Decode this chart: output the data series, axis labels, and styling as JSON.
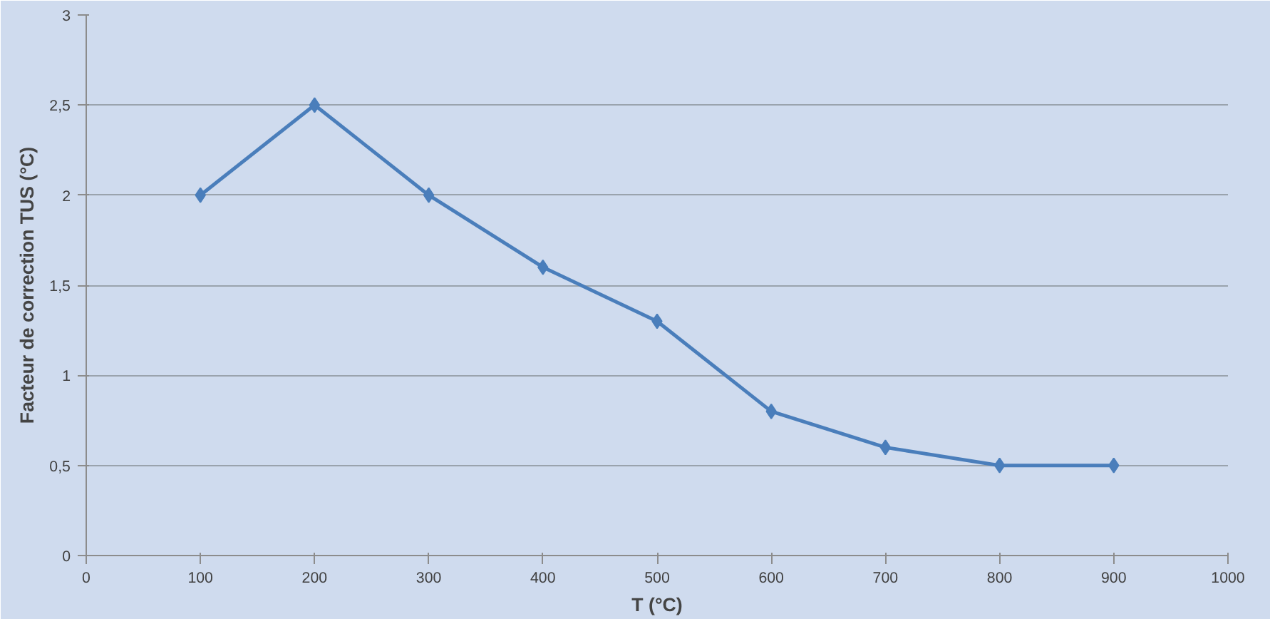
{
  "chart_data": {
    "type": "line",
    "xlabel": "T (°C)",
    "ylabel": "Facteur de correction TUS (°C)",
    "x": [
      100,
      200,
      300,
      400,
      500,
      600,
      700,
      800,
      900
    ],
    "series": [
      {
        "color": "#4a7ebb",
        "values": [
          2,
          2.5,
          2,
          1.6,
          1.3,
          0.8,
          0.6,
          0.5,
          0.5
        ]
      }
    ],
    "xlim": [
      0,
      1000
    ],
    "xticks": [
      0,
      100,
      200,
      300,
      400,
      500,
      600,
      700,
      800,
      900,
      1000
    ],
    "ylim": [
      0,
      3
    ],
    "yticks": [
      0,
      {
        "value": 0.5,
        "label": "0,5"
      },
      1,
      {
        "value": 1.5,
        "label": "1,5"
      },
      2,
      {
        "value": 2.5,
        "label": "2,5"
      },
      3
    ],
    "grid": "y",
    "marker": "diamond",
    "line_style": "solid"
  }
}
